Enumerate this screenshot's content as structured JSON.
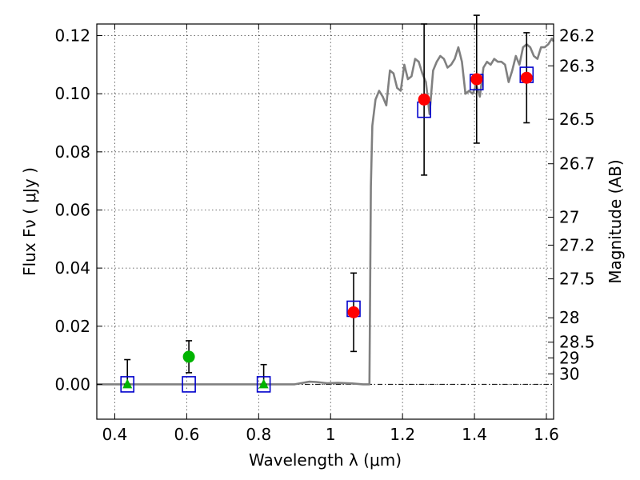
{
  "chart_data": {
    "type": "scatter",
    "title": "",
    "xlabel": "Wavelength  λ (μm)",
    "ylabel": "Flux  Fν  ( μJy )",
    "y2label": "Magnitude (AB)",
    "xlim": [
      0.35,
      1.62
    ],
    "ylim": [
      -0.012,
      0.124
    ],
    "grid": true,
    "x_ticks": [
      0.4,
      0.6,
      0.8,
      1.0,
      1.2,
      1.4,
      1.6
    ],
    "x_tick_labels": [
      "0.4",
      "0.6",
      "0.8",
      "1",
      "1.2",
      "1.4",
      "1.6"
    ],
    "y_ticks": [
      0.0,
      0.02,
      0.04,
      0.06,
      0.08,
      0.1,
      0.12
    ],
    "y_tick_labels": [
      "0.00",
      "0.02",
      "0.04",
      "0.06",
      "0.08",
      "0.10",
      "0.12"
    ],
    "y2_ticks": [
      {
        "label": "26.2",
        "flux": 0.12
      },
      {
        "label": "26.3",
        "flux": 0.1096
      },
      {
        "label": "26.5",
        "flux": 0.0912
      },
      {
        "label": "26.7",
        "flux": 0.0759
      },
      {
        "label": "27",
        "flux": 0.0575
      },
      {
        "label": "27.2",
        "flux": 0.0479
      },
      {
        "label": "27.5",
        "flux": 0.0363
      },
      {
        "label": "28",
        "flux": 0.0229
      },
      {
        "label": "28.5",
        "flux": 0.0145
      },
      {
        "label": "29",
        "flux": 0.0091
      },
      {
        "label": "30",
        "flux": 0.0036
      }
    ],
    "model_spectrum": {
      "color": "#808080",
      "x": [
        0.35,
        0.9,
        0.94,
        0.96,
        0.99,
        1.02,
        1.06,
        1.09,
        1.108,
        1.112,
        1.116,
        1.125,
        1.135,
        1.145,
        1.155,
        1.165,
        1.175,
        1.185,
        1.195,
        1.205,
        1.215,
        1.225,
        1.235,
        1.245,
        1.255,
        1.265,
        1.275,
        1.285,
        1.295,
        1.305,
        1.315,
        1.325,
        1.335,
        1.345,
        1.355,
        1.365,
        1.375,
        1.385,
        1.395,
        1.405,
        1.415,
        1.425,
        1.435,
        1.445,
        1.455,
        1.465,
        1.475,
        1.485,
        1.495,
        1.505,
        1.515,
        1.525,
        1.535,
        1.545,
        1.555,
        1.565,
        1.575,
        1.585,
        1.595,
        1.605,
        1.615,
        1.62
      ],
      "y": [
        0.0,
        0.0,
        0.0009,
        0.0008,
        0.0004,
        0.0005,
        0.0003,
        0.0,
        0.0,
        0.068,
        0.089,
        0.098,
        0.101,
        0.099,
        0.096,
        0.108,
        0.107,
        0.102,
        0.101,
        0.11,
        0.105,
        0.106,
        0.112,
        0.111,
        0.107,
        0.104,
        0.093,
        0.108,
        0.111,
        0.113,
        0.112,
        0.109,
        0.11,
        0.112,
        0.116,
        0.111,
        0.1,
        0.101,
        0.1,
        0.103,
        0.099,
        0.109,
        0.111,
        0.11,
        0.112,
        0.111,
        0.111,
        0.11,
        0.104,
        0.108,
        0.113,
        0.11,
        0.116,
        0.117,
        0.116,
        0.113,
        0.112,
        0.116,
        0.116,
        0.117,
        0.119,
        0.118
      ]
    },
    "model_photometry": {
      "marker": "open-square",
      "color": "#0000cc",
      "x": [
        0.435,
        0.606,
        0.814,
        1.064,
        1.26,
        1.406,
        1.545
      ],
      "y": [
        0.0,
        0.0,
        0.0,
        0.026,
        0.0945,
        0.104,
        0.1065
      ]
    },
    "detections": {
      "marker": "circle",
      "color": "#ff0000",
      "x": [
        1.064,
        1.26,
        1.406,
        1.545
      ],
      "y": [
        0.0248,
        0.098,
        0.105,
        0.1055
      ],
      "err": [
        0.0135,
        0.026,
        0.022,
        0.0155
      ]
    },
    "nondetections": [
      {
        "marker": "triangle",
        "color": "#00b400",
        "x": 0.435,
        "y": 0.0,
        "err_low": 0.0,
        "err_high": 0.0085
      },
      {
        "marker": "circle",
        "color": "#00b400",
        "x": 0.606,
        "y": 0.0095,
        "err_low": 0.0055,
        "err_high": 0.0055
      },
      {
        "marker": "triangle",
        "color": "#00b400",
        "x": 0.814,
        "y": 0.0,
        "err_low": 0.0,
        "err_high": 0.0068
      }
    ]
  }
}
